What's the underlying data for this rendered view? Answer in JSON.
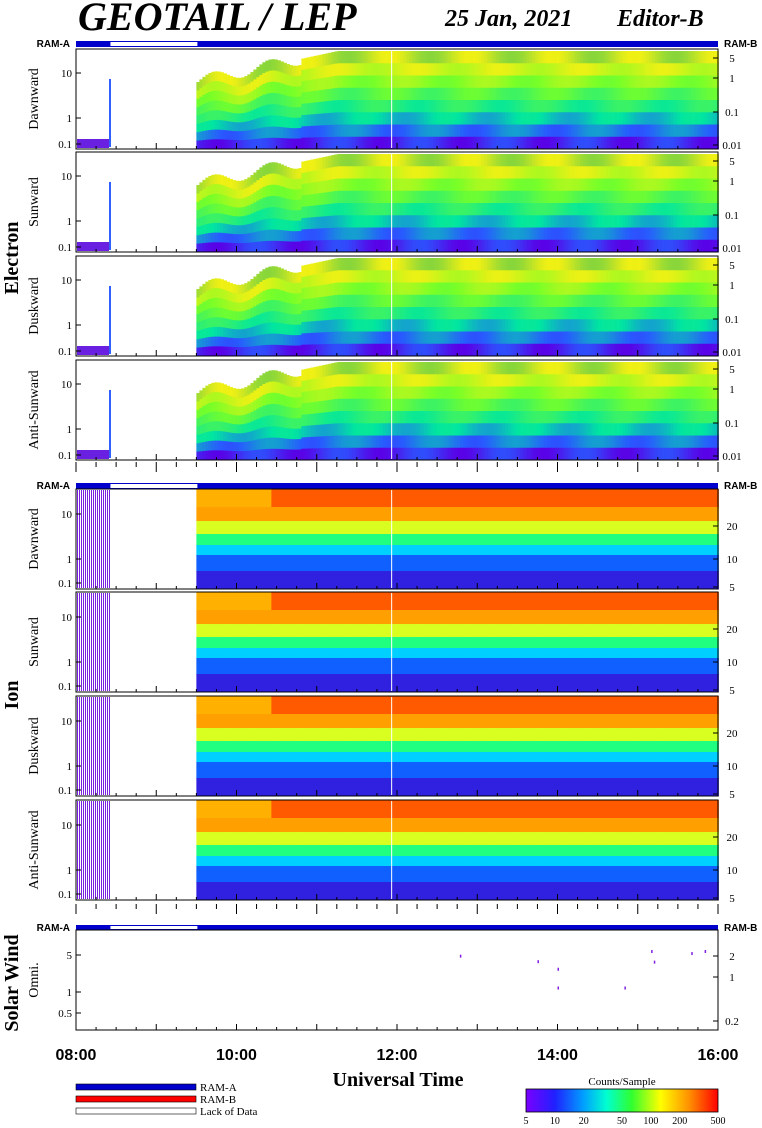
{
  "header": {
    "title": "GEOTAIL / LEP",
    "date": "25 Jan, 2021",
    "editor": "Editor-B"
  },
  "labels": {
    "ram_a": "RAM-A",
    "ram_b": "RAM-B",
    "x_axis_title": "Universal Time",
    "colorbar_title": "Counts/Sample",
    "legend_ram_a": "RAM-A",
    "legend_ram_b": "RAM-B",
    "legend_lack": "Lack of Data"
  },
  "colors": {
    "ram_a": "#0000cc",
    "ram_b": "#ff0000",
    "lack": "#ffffff"
  },
  "chart_data": {
    "type": "heatmap",
    "time_range": [
      "08:00",
      "16:00"
    ],
    "x_ticks": [
      "08:00",
      "10:00",
      "12:00",
      "14:00",
      "16:00"
    ],
    "data_gaps": [
      [
        "08:25",
        "09:30"
      ]
    ],
    "groups": [
      {
        "name": "Electron",
        "left_ticks": [
          "10",
          "1",
          "0.1"
        ],
        "right_ticks": [
          "5",
          "1",
          "0.1",
          "0.01"
        ],
        "panels": [
          "Dawnward",
          "Sunward",
          "Duskward",
          "Anti-Sunward"
        ]
      },
      {
        "name": "Ion",
        "left_ticks": [
          "10",
          "1",
          "0.1"
        ],
        "right_ticks": [
          "20",
          "10",
          "5"
        ],
        "panels": [
          "Dawnward",
          "Sunward",
          "Duskward",
          "Anti-Sunward"
        ]
      },
      {
        "name": "Solar Wind",
        "left_ticks": [
          "5",
          "1",
          "0.5"
        ],
        "right_ticks": [
          "2",
          "1",
          "0.2"
        ],
        "panels": [
          "Omni."
        ]
      }
    ],
    "colorbar": {
      "scale": "log",
      "range": [
        5,
        500
      ],
      "ticks": [
        "5",
        "10",
        "20",
        "50",
        "100",
        "200",
        "500"
      ]
    },
    "solar_wind_points": [
      {
        "t": "12:47",
        "v": 6.0
      },
      {
        "t": "13:45",
        "v": 4.6
      },
      {
        "t": "14:00",
        "v": 3.2
      },
      {
        "t": "14:00",
        "v": 1.3
      },
      {
        "t": "14:50",
        "v": 1.3
      },
      {
        "t": "15:10",
        "v": 7.5
      },
      {
        "t": "15:12",
        "v": 4.5
      },
      {
        "t": "15:40",
        "v": 6.8
      },
      {
        "t": "15:50",
        "v": 7.5
      }
    ]
  }
}
